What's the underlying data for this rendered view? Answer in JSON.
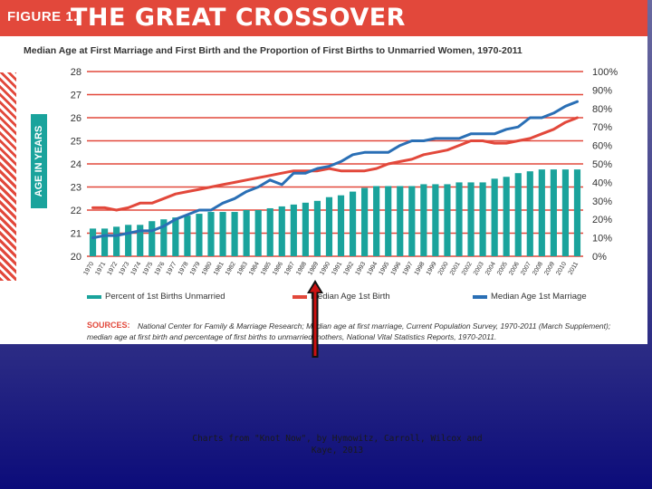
{
  "figure": {
    "label": "FIGURE 1.",
    "title": "THE GREAT CROSSOVER",
    "subtitle": "Median Age at First Marriage and First Birth and the Proportion of First Births to Unmarried Women, 1970-2011",
    "left_axis_label": "AGE IN YEARS",
    "sources_label": "SOURCES:",
    "sources_text": "National Center for Family & Marriage Research; Median age at first marriage, Current Population Survey, 1970-2011 (March Supplement); median age at first birth and percentage of first births to unmarried mothers, National Vital Statistics Reports, 1970-2011.",
    "caption": "Charts from \"Knot Now\", by Hymowitz, Carroll, Wilcox and Kaye, 2013"
  },
  "colors": {
    "header": "#e2483b",
    "bars": "#1aa39c",
    "first_birth": "#e2483b",
    "first_marriage": "#2a6fb5",
    "arrow_outline": "#111111",
    "arrow_fill": "#cc1111"
  },
  "chart_data": {
    "type": "bar",
    "categories": [
      "1970",
      "1971",
      "1972",
      "1973",
      "1974",
      "1975",
      "1976",
      "1977",
      "1978",
      "1979",
      "1980",
      "1981",
      "1982",
      "1983",
      "1984",
      "1985",
      "1986",
      "1987",
      "1988",
      "1989",
      "1990",
      "1991",
      "1992",
      "1993",
      "1994",
      "1995",
      "1996",
      "1997",
      "1998",
      "1999",
      "2000",
      "2001",
      "2002",
      "2003",
      "2004",
      "2005",
      "2006",
      "2007",
      "2008",
      "2009",
      "2010",
      "2011"
    ],
    "left_axis": {
      "ylim": [
        20,
        28
      ],
      "ticks": [
        "20",
        "21",
        "22",
        "23",
        "24",
        "25",
        "26",
        "27",
        "28"
      ]
    },
    "right_axis": {
      "ylim": [
        0,
        100
      ],
      "ticks": [
        "0%",
        "10%",
        "20%",
        "30%",
        "40%",
        "50%",
        "60%",
        "70%",
        "80%",
        "90%",
        "100%"
      ]
    },
    "series": [
      {
        "name": "Percent of 1st Births Unmarried",
        "kind": "bar",
        "axis": "right",
        "values": [
          15,
          15,
          16,
          17,
          17,
          19,
          20,
          21,
          22,
          23,
          24,
          24,
          24,
          25,
          25,
          26,
          27,
          28,
          29,
          30,
          32,
          33,
          35,
          37,
          38,
          38,
          38,
          38,
          39,
          39,
          39,
          40,
          40,
          40,
          42,
          43,
          45,
          46,
          47,
          47,
          47,
          47
        ]
      },
      {
        "name": "Median Age 1st Birth",
        "kind": "line",
        "axis": "left",
        "values": [
          22.1,
          22.1,
          22.0,
          22.1,
          22.3,
          22.3,
          22.5,
          22.7,
          22.8,
          22.9,
          23.0,
          23.1,
          23.2,
          23.3,
          23.4,
          23.5,
          23.6,
          23.7,
          23.7,
          23.7,
          23.8,
          23.7,
          23.7,
          23.7,
          23.8,
          24.0,
          24.1,
          24.2,
          24.4,
          24.5,
          24.6,
          24.8,
          25.0,
          25.0,
          24.9,
          24.9,
          25.0,
          25.1,
          25.3,
          25.5,
          25.8,
          26.0
        ]
      },
      {
        "name": "Median Age 1st Marriage",
        "kind": "line",
        "axis": "left",
        "values": [
          20.8,
          20.9,
          20.9,
          21.0,
          21.1,
          21.1,
          21.3,
          21.6,
          21.8,
          22.0,
          22.0,
          22.3,
          22.5,
          22.8,
          23.0,
          23.3,
          23.1,
          23.6,
          23.6,
          23.8,
          23.9,
          24.1,
          24.4,
          24.5,
          24.5,
          24.5,
          24.8,
          25.0,
          25.0,
          25.1,
          25.1,
          25.1,
          25.3,
          25.3,
          25.3,
          25.5,
          25.6,
          26.0,
          26.0,
          26.2,
          26.5,
          26.7
        ]
      }
    ],
    "grid": "horizontal",
    "legend_position": "bottom"
  }
}
